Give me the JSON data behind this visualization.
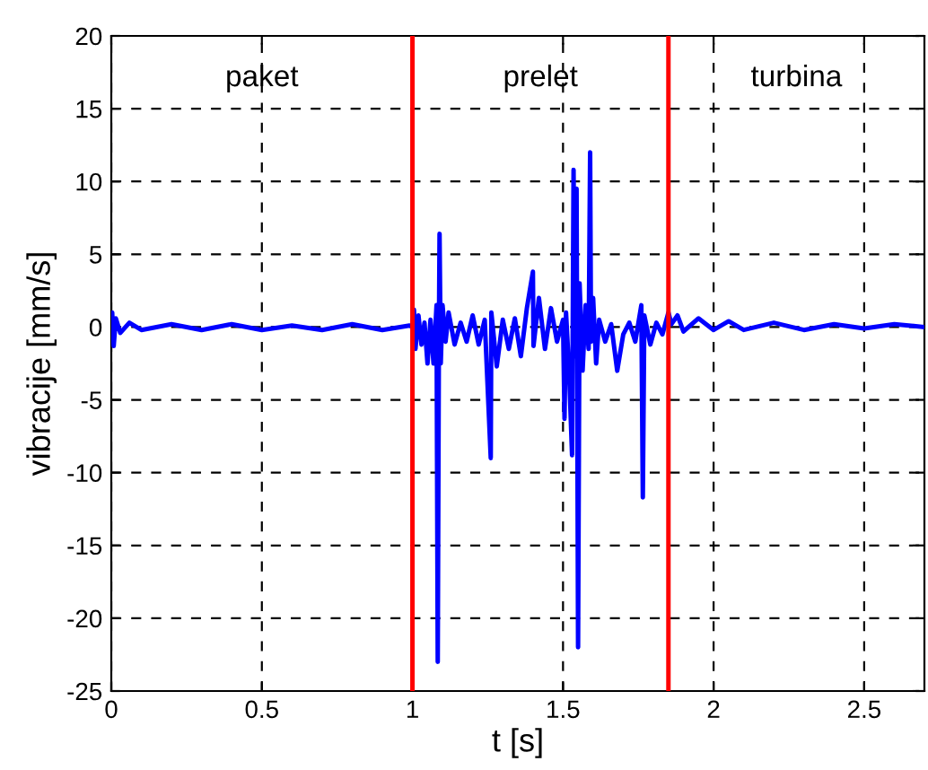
{
  "chart_data": {
    "type": "line",
    "xlabel": "t [s]",
    "ylabel": "vibracije [mm/s]",
    "series": [
      {
        "color": "#0000ff",
        "x": [
          0,
          0.003,
          0.008,
          0.015,
          0.03,
          0.06,
          0.1,
          0.2,
          0.3,
          0.4,
          0.5,
          0.6,
          0.7,
          0.8,
          0.9,
          0.99,
          1.0,
          1.005,
          1.01,
          1.02,
          1.03,
          1.04,
          1.05,
          1.06,
          1.07,
          1.08,
          1.084,
          1.088,
          1.09,
          1.094,
          1.1,
          1.11,
          1.12,
          1.14,
          1.16,
          1.18,
          1.2,
          1.22,
          1.24,
          1.26,
          1.262,
          1.28,
          1.3,
          1.32,
          1.34,
          1.36,
          1.38,
          1.4,
          1.402,
          1.42,
          1.44,
          1.46,
          1.48,
          1.5,
          1.505,
          1.51,
          1.52,
          1.53,
          1.535,
          1.54,
          1.545,
          1.55,
          1.555,
          1.565,
          1.575,
          1.585,
          1.59,
          1.593,
          1.6,
          1.61,
          1.62,
          1.64,
          1.66,
          1.68,
          1.7,
          1.72,
          1.74,
          1.76,
          1.765,
          1.77,
          1.79,
          1.81,
          1.83,
          1.85,
          1.86,
          1.88,
          1.9,
          1.95,
          2.0,
          2.05,
          2.1,
          2.2,
          2.3,
          2.4,
          2.5,
          2.6,
          2.7
        ],
        "values": [
          0,
          1.0,
          -1.3,
          0.6,
          -0.4,
          0.3,
          -0.2,
          0.2,
          -0.2,
          0.2,
          -0.2,
          0.1,
          -0.2,
          0.2,
          -0.2,
          0.1,
          0,
          1.2,
          -1.5,
          0.8,
          -1.2,
          0.3,
          -2.5,
          0.5,
          -2.5,
          1.5,
          -23,
          0,
          6.4,
          -2.5,
          1.5,
          -1.0,
          1.0,
          -1.2,
          0.3,
          -1.0,
          0.8,
          -1.2,
          0.5,
          -9,
          1.0,
          -2.7,
          0.5,
          -1.5,
          0.6,
          -2.0,
          1.3,
          3.8,
          -1.3,
          2.0,
          -1.5,
          1.3,
          -1.0,
          0.5,
          -6.3,
          1.0,
          -3,
          -8.8,
          10.8,
          -2,
          9.5,
          -22,
          3,
          -3,
          1.5,
          -1.5,
          12,
          -1.0,
          2.0,
          -2.5,
          0.5,
          -1.0,
          0.2,
          -3.0,
          -0.5,
          0.3,
          -1.0,
          1.5,
          -11.7,
          0.8,
          -1.2,
          0.3,
          -0.5,
          1.0,
          0.2,
          0.8,
          -0.3,
          0.6,
          -0.2,
          0.4,
          -0.2,
          0.3,
          -0.2,
          0.2,
          -0.1,
          0.2,
          0
        ]
      }
    ],
    "xlim": [
      0,
      2.7
    ],
    "xticks": [
      0,
      0.5,
      1,
      1.5,
      2,
      2.5
    ],
    "ylim": [
      -25,
      20
    ],
    "yticks": [
      -25,
      -20,
      -15,
      -10,
      -5,
      0,
      5,
      10,
      15,
      20
    ],
    "grid": true,
    "marker": "none",
    "line_style": "solid",
    "ref_lines": [
      {
        "axis": "x",
        "value": 1.0,
        "color": "#ff0000"
      },
      {
        "axis": "x",
        "value": 1.85,
        "color": "#ff0000"
      }
    ],
    "annotations": [
      "paket",
      "prelet",
      "turbina"
    ]
  }
}
